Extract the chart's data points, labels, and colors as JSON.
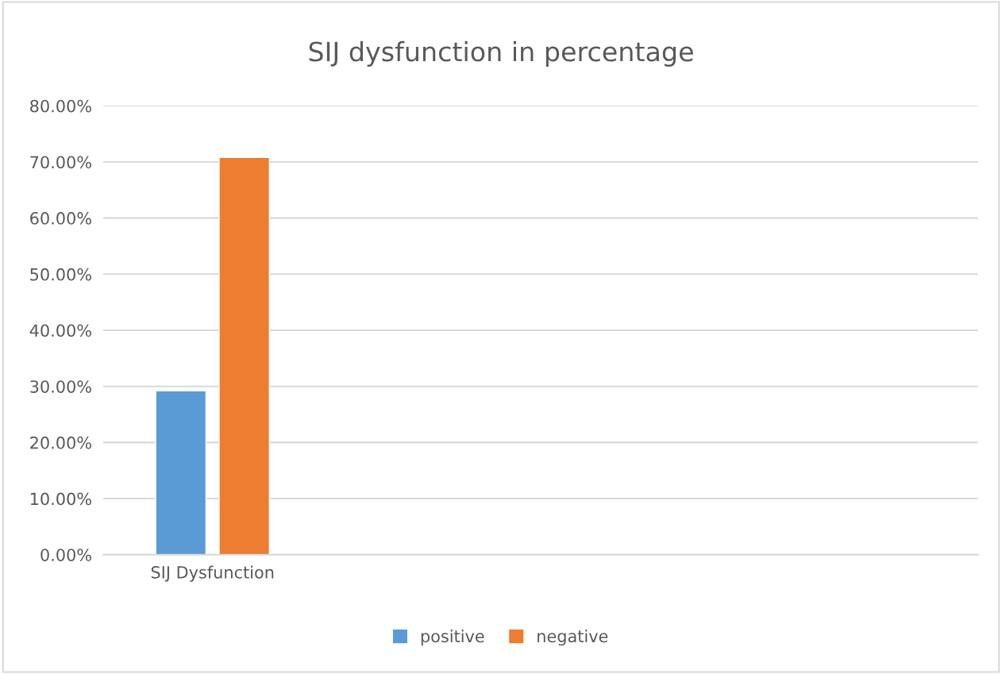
{
  "chart_data": {
    "type": "bar",
    "title": "SIJ dysfunction in percentage",
    "categories": [
      "SIJ Dysfunction",
      null,
      null,
      null
    ],
    "series": [
      {
        "name": "positive",
        "color": "#5b9bd5",
        "values": [
          29.2,
          null,
          null,
          null
        ]
      },
      {
        "name": "negative",
        "color": "#ed7d31",
        "values": [
          70.8,
          null,
          null,
          null
        ]
      }
    ],
    "ylim": [
      0,
      80
    ],
    "yticks": [
      {
        "value": 0,
        "label": "0.00%"
      },
      {
        "value": 10,
        "label": "10.00%"
      },
      {
        "value": 20,
        "label": "20.00%"
      },
      {
        "value": 30,
        "label": "30.00%"
      },
      {
        "value": 40,
        "label": "40.00%"
      },
      {
        "value": 50,
        "label": "50.00%"
      },
      {
        "value": 60,
        "label": "60.00%"
      },
      {
        "value": 70,
        "label": "70.00%"
      },
      {
        "value": 80,
        "label": "80.00%"
      }
    ],
    "grid": "y",
    "legend": "bottom"
  }
}
